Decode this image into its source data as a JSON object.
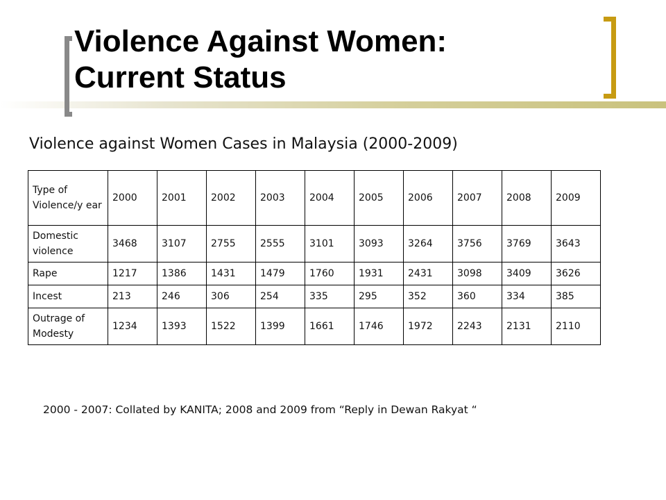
{
  "slide": {
    "title": "Violence Against Women:\n Current Status",
    "subtitle": "Violence against Women Cases in Malaysia (2000-2009)",
    "footnote": "2000 - 2007: Collated by KANITA; 2008 and 2009 from “Reply in Dewan Rakyat “"
  },
  "table": {
    "header": [
      "Type of Violence/y ear",
      "2000",
      "2001",
      "2002",
      "2003",
      "2004",
      "2005",
      "2006",
      "2007",
      "2008",
      "2009"
    ],
    "rows": [
      {
        "label": "Domestic violence",
        "values": [
          "3468",
          "3107",
          "2755",
          "2555",
          "3101",
          "3093",
          "3264",
          "3756",
          "3769",
          "3643"
        ]
      },
      {
        "label": "Rape",
        "values": [
          "1217",
          "1386",
          "1431",
          "1479",
          "1760",
          "1931",
          "2431",
          "3098",
          "3409",
          "3626"
        ]
      },
      {
        "label": "Incest",
        "values": [
          "213",
          "246",
          "306",
          "254",
          "335",
          "295",
          "352",
          "360",
          "334",
          "385"
        ]
      },
      {
        "label": "Outrage of Modesty",
        "values": [
          "1234",
          "1393",
          "1522",
          "1399",
          "1661",
          "1746",
          "1972",
          "2243",
          "2131",
          "2110"
        ]
      }
    ]
  },
  "colors": {
    "accent_gold": "#c79b12",
    "bracket_grey": "#898989"
  }
}
